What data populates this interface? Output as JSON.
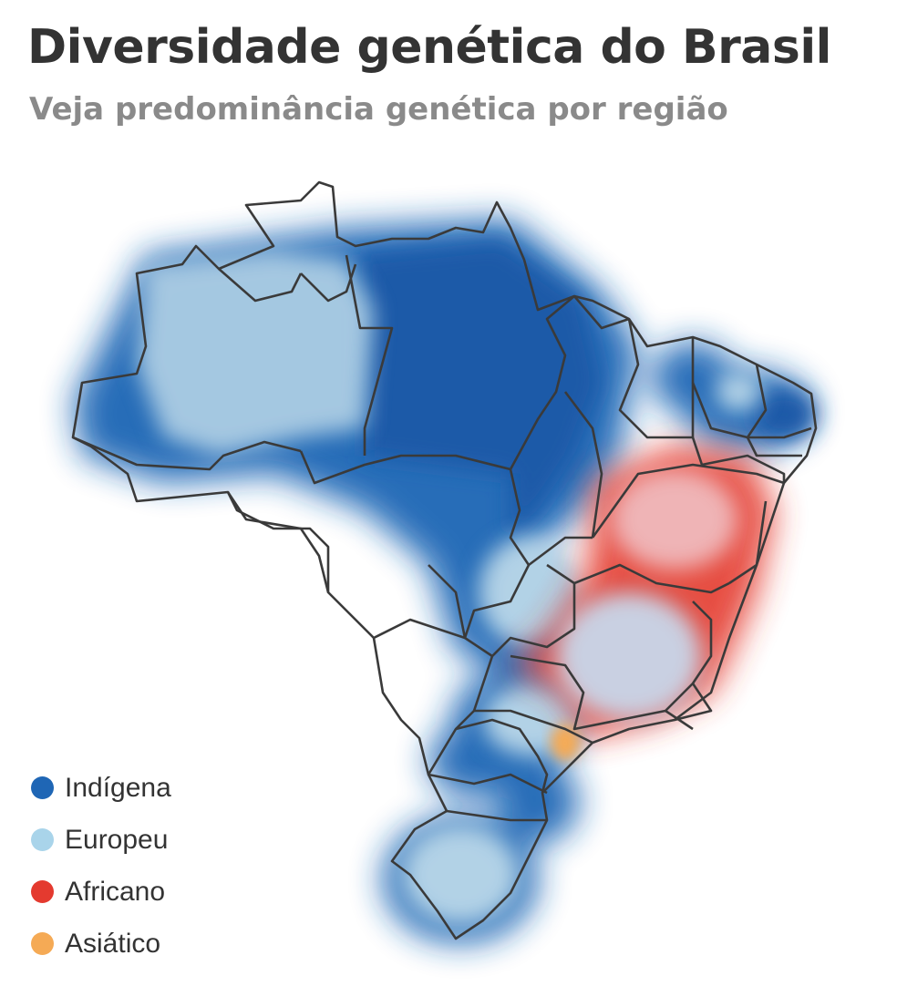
{
  "header": {
    "title": "Diversidade genética do Brasil",
    "subtitle": "Veja predominância genética por região"
  },
  "legend": [
    {
      "label": "Indígena",
      "color": "#1f66b5"
    },
    {
      "label": "Europeu",
      "color": "#a9d4ea"
    },
    {
      "label": "Africano",
      "color": "#e43a2f"
    },
    {
      "label": "Asiático",
      "color": "#f5aa55"
    }
  ],
  "colors": {
    "indigena": "#1f66b5",
    "europeu": "#a9d4ea",
    "africano": "#e43a2f",
    "asiatico": "#f5aa55",
    "border": "#3a3a3a"
  }
}
